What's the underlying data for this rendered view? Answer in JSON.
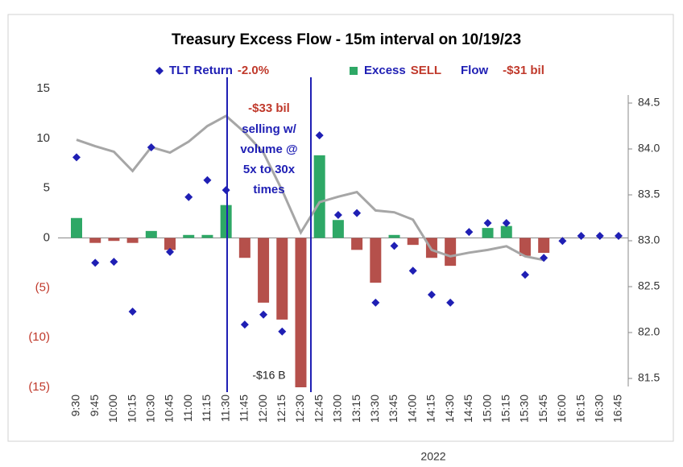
{
  "chart_data": {
    "type": "combo",
    "title": "Treasury Excess Flow - 15m interval on 10/19/23",
    "categories": [
      "9:30",
      "9:45",
      "10:00",
      "10:15",
      "10:30",
      "10:45",
      "11:00",
      "11:15",
      "11:30",
      "11:45",
      "12:00",
      "12:15",
      "12:30",
      "12:45",
      "13:00",
      "13:15",
      "13:30",
      "13:45",
      "14:00",
      "14:15",
      "14:30",
      "14:45",
      "15:00",
      "15:15",
      "15:30",
      "15:45",
      "16:00",
      "16:15",
      "16:30",
      "16:45"
    ],
    "series": [
      {
        "name": "TLT Return",
        "type": "scatter",
        "color": "#1f1fb4",
        "legend_note": "-2.0%",
        "values": [
          8.1,
          -2.5,
          -2.4,
          -7.4,
          9.1,
          -1.4,
          4.1,
          5.8,
          4.8,
          -8.7,
          -7.7,
          -9.4,
          null,
          10.3,
          2.3,
          2.5,
          -6.5,
          -0.8,
          -3.3,
          -5.7,
          -6.5,
          0.6,
          1.5,
          1.5,
          -3.7,
          -2,
          -0.3,
          0.2,
          0.2,
          0.2
        ]
      },
      {
        "name": "Excess",
        "type": "bar",
        "color": "#2ea866",
        "negative_color": "#b5504b",
        "legend_note": "SELL",
        "values": [
          2,
          -0.5,
          -0.3,
          -0.5,
          0.7,
          -1.2,
          0.3,
          0.3,
          3.3,
          -2,
          -6.5,
          -8.2,
          -16,
          8.3,
          1.8,
          -1.2,
          -4.5,
          0.3,
          -0.7,
          -2,
          -2.8,
          0,
          1,
          1.2,
          -1.8,
          -1.5,
          0,
          0,
          0,
          0
        ]
      },
      {
        "name": "Flow",
        "type": "line",
        "axis": "y2",
        "color": "#a6a6a6",
        "legend_note": "-$31 bil",
        "values": [
          84.1,
          84.03,
          83.97,
          83.76,
          84.02,
          83.96,
          84.08,
          84.25,
          84.36,
          84.18,
          83.96,
          83.55,
          83.09,
          83.42,
          83.48,
          83.53,
          83.33,
          83.31,
          83.23,
          82.9,
          82.83,
          82.87,
          82.9,
          82.94,
          82.83,
          82.79,
          null,
          null,
          null,
          null
        ]
      }
    ],
    "ylim": [
      -15,
      15
    ],
    "yticks": [
      15,
      10,
      5,
      0,
      {
        "value": -5,
        "label": "(5)"
      },
      {
        "value": -10,
        "label": "(10)"
      },
      {
        "value": -15,
        "label": "(15)"
      }
    ],
    "y2lim": [
      81.5,
      84.5
    ],
    "y2ticks": [
      84.5,
      {
        "value": 84,
        "label": "84.0"
      },
      83.5,
      {
        "value": 83,
        "label": "83.0"
      },
      82.5,
      {
        "value": 82,
        "label": "82.0"
      },
      81.5
    ],
    "annotations": {
      "sell_total": "-$33 bil",
      "note": [
        "selling w/",
        "volume @",
        "5x to 30x",
        "times"
      ],
      "low": "-$16 B",
      "footer": "2022"
    }
  }
}
